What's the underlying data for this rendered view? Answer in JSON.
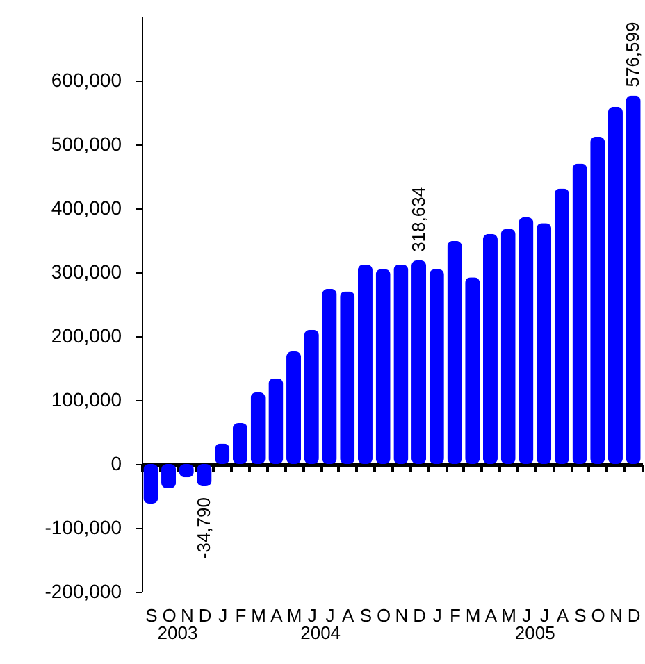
{
  "chart_data": {
    "type": "bar",
    "categories": [
      "S",
      "O",
      "N",
      "D",
      "J",
      "F",
      "M",
      "A",
      "M",
      "J",
      "J",
      "A",
      "S",
      "O",
      "N",
      "D",
      "J",
      "F",
      "M",
      "A",
      "M",
      "J",
      "J",
      "A",
      "S",
      "O",
      "N",
      "D"
    ],
    "values": [
      -62000,
      -38000,
      -21000,
      -34790,
      32000,
      64000,
      112000,
      134000,
      176000,
      210000,
      274000,
      270000,
      312000,
      305000,
      312000,
      318634,
      305000,
      349000,
      292000,
      360000,
      368000,
      386000,
      377000,
      431000,
      470000,
      512000,
      559000,
      576599
    ],
    "value_labels": [
      null,
      null,
      null,
      "-34,790",
      null,
      null,
      null,
      null,
      null,
      null,
      null,
      null,
      null,
      null,
      null,
      "318,634",
      null,
      null,
      null,
      null,
      null,
      null,
      null,
      null,
      null,
      null,
      null,
      "576,599"
    ],
    "color": "#0000ff",
    "ylim": [
      -200000,
      700000
    ],
    "yticks": [
      {
        "value": -200000,
        "label": "-200,000"
      },
      {
        "value": -100000,
        "label": "-100,000"
      },
      0,
      {
        "value": 100000,
        "label": "100,000"
      },
      {
        "value": 200000,
        "label": "200,000"
      },
      {
        "value": 300000,
        "label": "300,000"
      },
      {
        "value": 400000,
        "label": "400,000"
      },
      {
        "value": 500000,
        "label": "500,000"
      },
      {
        "value": 600000,
        "label": "600,000"
      }
    ],
    "annotations": [
      "2003",
      "2004",
      "2005"
    ]
  }
}
